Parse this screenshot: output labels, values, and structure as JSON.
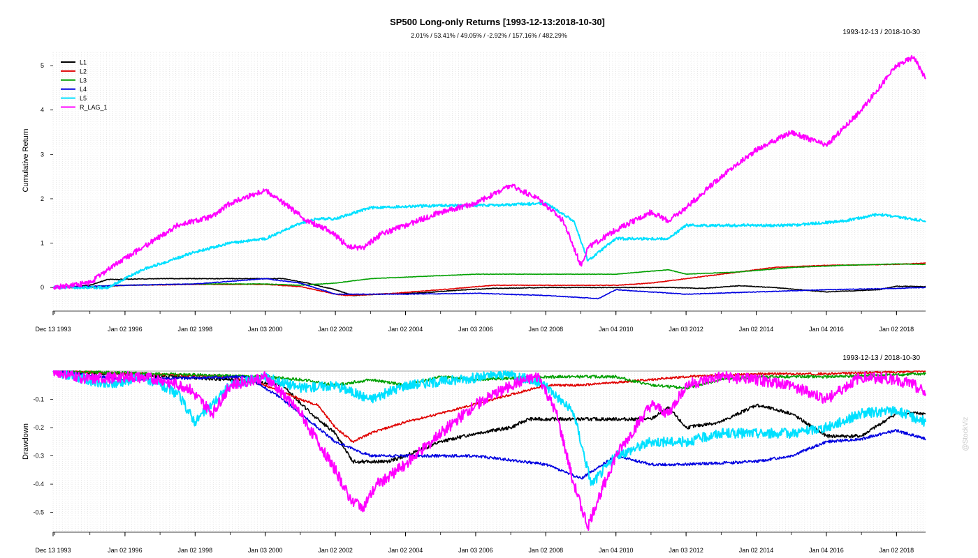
{
  "chart_data": [
    {
      "type": "line",
      "title": "SP500 Long-only Returns [1993-12-13:2018-10-30]",
      "subtitle": "2.01% / 53.41% / 49.05% / -2.92% / 157.16% / 482.29%",
      "date_range_label": "1993-12-13 / 2018-10-30",
      "ylabel": "Cumulative Return",
      "xlim": [
        1993.95,
        2018.83
      ],
      "ylim": [
        -0.5,
        5.3
      ],
      "yticks": [
        0,
        1,
        2,
        3,
        4,
        5
      ],
      "xtick_labels": [
        "Dec 13 1993",
        "Jan 02 1996",
        "Jan 02 1998",
        "Jan 03 2000",
        "Jan 02 2002",
        "Jan 02 2004",
        "Jan 03 2006",
        "Jan 02 2008",
        "Jan 04 2010",
        "Jan 03 2012",
        "Jan 02 2014",
        "Jan 04 2016",
        "Jan 02 2018"
      ],
      "xtick_years": [
        1993.95,
        1996.0,
        1998.0,
        2000.0,
        2002.0,
        2004.0,
        2006.0,
        2008.0,
        2010.0,
        2012.0,
        2014.0,
        2016.0,
        2018.0
      ],
      "grid": true,
      "legend_position": "top-left",
      "series": [
        {
          "name": "L1",
          "color": "#000000",
          "x": [
            1993.95,
            1995.0,
            1995.5,
            1997.0,
            1999.0,
            2000.5,
            2001.2,
            2002.0,
            2002.5,
            2003.5,
            2004.5,
            2005.5,
            2006.5,
            2008.0,
            2010.0,
            2011.5,
            2012.5,
            2013.5,
            2014.5,
            2016.0,
            2017.5,
            2018.0,
            2018.83
          ],
          "y": [
            0,
            0.05,
            0.18,
            0.2,
            0.2,
            0.2,
            0.1,
            -0.05,
            -0.18,
            -0.14,
            -0.12,
            -0.06,
            -0.02,
            0,
            0,
            0,
            -0.02,
            0.04,
            0.0,
            -0.1,
            -0.05,
            0.03,
            0.02
          ]
        },
        {
          "name": "L2",
          "color": "#e00000",
          "x": [
            1993.95,
            1995.0,
            1996.0,
            1998.0,
            2000.0,
            2001.0,
            2002.0,
            2002.3,
            2003.5,
            2005.0,
            2006.5,
            2008.0,
            2010.0,
            2011.0,
            2012.0,
            2013.0,
            2014.5,
            2016.0,
            2018.0,
            2018.83
          ],
          "y": [
            0,
            0,
            0.05,
            0.07,
            0.07,
            0.02,
            -0.15,
            -0.18,
            -0.14,
            -0.05,
            0.05,
            0.05,
            0.05,
            0.1,
            0.2,
            0.3,
            0.45,
            0.5,
            0.52,
            0.55
          ]
        },
        {
          "name": "L3",
          "color": "#00a000",
          "x": [
            1993.95,
            1996.0,
            1998.0,
            2000.0,
            2001.0,
            2002.0,
            2003.0,
            2004.5,
            2006.0,
            2008.0,
            2010.0,
            2011.5,
            2012.0,
            2013.5,
            2015.0,
            2016.5,
            2018.0,
            2018.83
          ],
          "y": [
            0,
            0.05,
            0.08,
            0.08,
            0.05,
            0.1,
            0.2,
            0.25,
            0.3,
            0.3,
            0.3,
            0.4,
            0.3,
            0.35,
            0.45,
            0.5,
            0.53,
            0.52
          ]
        },
        {
          "name": "L4",
          "color": "#0000e0",
          "x": [
            1993.95,
            1996.0,
            1998.0,
            2000.0,
            2001.0,
            2002.0,
            2004.0,
            2006.0,
            2008.0,
            2009.5,
            2010.0,
            2011.0,
            2012.0,
            2014.0,
            2016.0,
            2018.0,
            2018.83
          ],
          "y": [
            0,
            0.05,
            0.08,
            0.2,
            0.1,
            -0.15,
            -0.15,
            -0.13,
            -0.18,
            -0.25,
            -0.05,
            -0.1,
            -0.15,
            -0.1,
            -0.05,
            -0.02,
            0.0
          ]
        },
        {
          "name": "L5",
          "color": "#00e0ff",
          "x": [
            1993.95,
            1995.5,
            1996.5,
            1998.0,
            1999.0,
            2000.0,
            2001.0,
            2001.5,
            2002.0,
            2003.0,
            2005.0,
            2006.5,
            2008.0,
            2008.8,
            2009.2,
            2010.0,
            2011.5,
            2012.0,
            2013.0,
            2015.0,
            2016.5,
            2017.5,
            2018.83
          ],
          "y": [
            0,
            0.0,
            0.4,
            0.8,
            1.0,
            1.1,
            1.45,
            1.55,
            1.55,
            1.8,
            1.85,
            1.85,
            1.9,
            1.5,
            0.6,
            1.1,
            1.1,
            1.4,
            1.4,
            1.4,
            1.5,
            1.65,
            1.5
          ]
        },
        {
          "name": "R_LAG_1",
          "color": "#ff00ff",
          "x": [
            1993.95,
            1995.0,
            1995.5,
            1996.5,
            1997.5,
            1998.5,
            1999.0,
            2000.0,
            2000.7,
            2001.2,
            2001.8,
            2002.4,
            2002.8,
            2003.3,
            2004.0,
            2005.0,
            2006.0,
            2007.0,
            2007.8,
            2008.5,
            2009.0,
            2009.2,
            2010.0,
            2011.0,
            2011.5,
            2012.0,
            2013.0,
            2014.0,
            2015.0,
            2016.0,
            2017.0,
            2018.0,
            2018.5,
            2018.83
          ],
          "y": [
            0,
            0.1,
            0.4,
            0.9,
            1.4,
            1.6,
            1.9,
            2.2,
            1.8,
            1.5,
            1.3,
            0.9,
            0.9,
            1.2,
            1.4,
            1.7,
            1.9,
            2.3,
            2.0,
            1.5,
            0.5,
            0.9,
            1.3,
            1.7,
            1.5,
            1.8,
            2.5,
            3.1,
            3.5,
            3.2,
            4.0,
            5.0,
            5.2,
            4.7
          ]
        }
      ]
    },
    {
      "type": "line",
      "date_range_label": "1993-12-13 / 2018-10-30",
      "ylabel": "Drawdown",
      "xlim": [
        1993.95,
        2018.83
      ],
      "ylim": [
        -0.57,
        0.0
      ],
      "yticks": [
        -0.1,
        -0.2,
        -0.3,
        -0.4,
        -0.5
      ],
      "xtick_labels": [
        "Dec 13 1993",
        "Jan 02 1996",
        "Jan 02 1998",
        "Jan 03 2000",
        "Jan 02 2002",
        "Jan 02 2004",
        "Jan 03 2006",
        "Jan 02 2008",
        "Jan 04 2010",
        "Jan 03 2012",
        "Jan 02 2014",
        "Jan 04 2016",
        "Jan 02 2018"
      ],
      "xtick_years": [
        1993.95,
        1996.0,
        1998.0,
        2000.0,
        2002.0,
        2004.0,
        2006.0,
        2008.0,
        2010.0,
        2012.0,
        2014.0,
        2016.0,
        2018.0
      ],
      "grid": true,
      "series": [
        {
          "name": "L1",
          "color": "#000000",
          "x": [
            1993.95,
            1999.0,
            2000.5,
            2001.3,
            2002.0,
            2002.5,
            2003.5,
            2004.0,
            2005.0,
            2006.0,
            2007.0,
            2007.5,
            2009.0,
            2011.0,
            2011.5,
            2012.0,
            2013.0,
            2014.0,
            2015.0,
            2016.0,
            2017.0,
            2018.0,
            2018.83
          ],
          "y": [
            0,
            -0.03,
            -0.05,
            -0.15,
            -0.22,
            -0.32,
            -0.32,
            -0.3,
            -0.25,
            -0.22,
            -0.2,
            -0.17,
            -0.17,
            -0.17,
            -0.13,
            -0.2,
            -0.18,
            -0.12,
            -0.15,
            -0.23,
            -0.23,
            -0.15,
            -0.15
          ]
        },
        {
          "name": "L2",
          "color": "#e00000",
          "x": [
            1993.95,
            1999.0,
            2000.0,
            2001.0,
            2001.5,
            2002.0,
            2002.5,
            2003.0,
            2004.0,
            2005.0,
            2006.5,
            2008.0,
            2009.0,
            2010.0,
            2011.0,
            2012.0,
            2014.0,
            2016.0,
            2018.83
          ],
          "y": [
            0,
            -0.02,
            -0.05,
            -0.1,
            -0.12,
            -0.2,
            -0.25,
            -0.22,
            -0.18,
            -0.15,
            -0.1,
            -0.05,
            -0.05,
            -0.04,
            -0.03,
            -0.02,
            -0.01,
            -0.01,
            0
          ]
        },
        {
          "name": "L3",
          "color": "#00a000",
          "x": [
            1993.95,
            2000.0,
            2001.0,
            2002.0,
            2003.0,
            2004.0,
            2005.0,
            2006.0,
            2008.0,
            2009.0,
            2010.0,
            2011.0,
            2012.0,
            2013.0,
            2014.0,
            2016.0,
            2018.83
          ],
          "y": [
            0,
            -0.02,
            -0.03,
            -0.05,
            -0.03,
            -0.05,
            -0.02,
            -0.03,
            -0.02,
            -0.02,
            -0.02,
            -0.05,
            -0.06,
            -0.03,
            -0.02,
            -0.02,
            -0.01
          ]
        },
        {
          "name": "L4",
          "color": "#0000e0",
          "x": [
            1993.95,
            1996.0,
            1999.5,
            2000.5,
            2001.5,
            2002.0,
            2003.0,
            2004.0,
            2006.0,
            2008.0,
            2009.0,
            2010.0,
            2011.0,
            2012.0,
            2014.0,
            2015.0,
            2016.0,
            2017.0,
            2018.0,
            2018.83
          ],
          "y": [
            0,
            -0.03,
            -0.02,
            -0.1,
            -0.2,
            -0.25,
            -0.3,
            -0.3,
            -0.3,
            -0.33,
            -0.38,
            -0.3,
            -0.33,
            -0.33,
            -0.32,
            -0.3,
            -0.25,
            -0.24,
            -0.21,
            -0.24
          ]
        },
        {
          "name": "L5",
          "color": "#00e0ff",
          "x": [
            1993.95,
            1995.5,
            1996.5,
            1997.5,
            1998.0,
            1999.0,
            2000.0,
            2001.0,
            2002.0,
            2003.0,
            2004.0,
            2005.5,
            2007.0,
            2008.0,
            2008.8,
            2009.3,
            2010.0,
            2011.0,
            2012.0,
            2013.0,
            2015.0,
            2016.0,
            2017.0,
            2018.0,
            2018.83
          ],
          "y": [
            0,
            -0.05,
            -0.02,
            -0.08,
            -0.18,
            -0.05,
            -0.02,
            -0.06,
            -0.05,
            -0.1,
            -0.05,
            -0.03,
            -0.01,
            -0.05,
            -0.15,
            -0.4,
            -0.3,
            -0.25,
            -0.25,
            -0.22,
            -0.22,
            -0.2,
            -0.15,
            -0.14,
            -0.18
          ]
        },
        {
          "name": "R_LAG_1",
          "color": "#ff00ff",
          "x": [
            1993.95,
            1995.0,
            1996.0,
            1997.0,
            1997.8,
            1998.5,
            1999.0,
            2000.0,
            2000.5,
            2001.0,
            2001.5,
            2002.0,
            2002.4,
            2002.8,
            2003.2,
            2004.0,
            2005.0,
            2006.0,
            2007.0,
            2007.8,
            2008.3,
            2008.8,
            2009.2,
            2009.5,
            2010.0,
            2011.0,
            2011.5,
            2012.0,
            2013.0,
            2014.0,
            2015.0,
            2016.0,
            2017.0,
            2018.0,
            2018.5,
            2018.83
          ],
          "y": [
            0,
            -0.03,
            -0.02,
            -0.03,
            -0.06,
            -0.15,
            -0.05,
            -0.02,
            -0.08,
            -0.15,
            -0.25,
            -0.35,
            -0.45,
            -0.48,
            -0.4,
            -0.33,
            -0.22,
            -0.12,
            -0.05,
            -0.02,
            -0.15,
            -0.4,
            -0.55,
            -0.45,
            -0.3,
            -0.12,
            -0.15,
            -0.05,
            -0.02,
            -0.03,
            -0.05,
            -0.1,
            -0.02,
            -0.03,
            -0.05,
            -0.08
          ]
        }
      ]
    }
  ],
  "watermark": "@StockViz"
}
